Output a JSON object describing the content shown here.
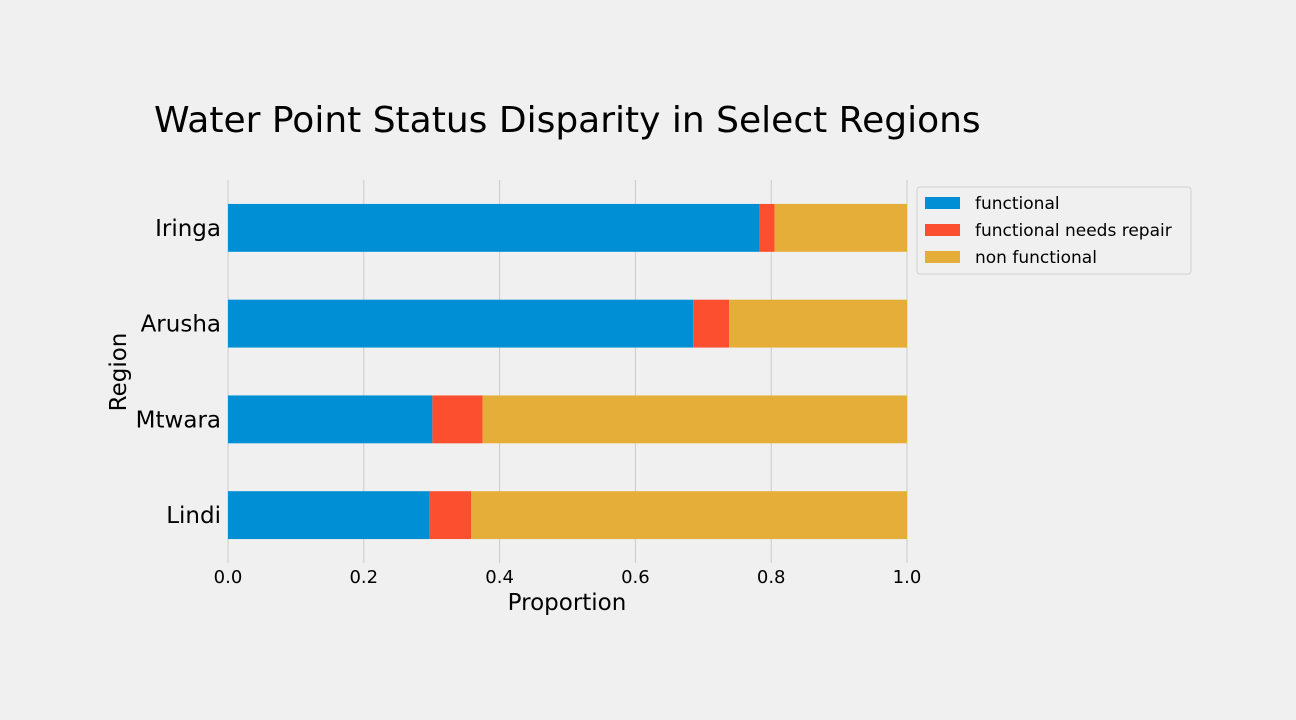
{
  "chart_data": {
    "type": "bar",
    "orientation": "horizontal",
    "stacked": true,
    "title": "Water Point Status Disparity in Select Regions",
    "xlabel": "Proportion",
    "ylabel": "Region",
    "categories": [
      "Iringa",
      "Arusha",
      "Mtwara",
      "Lindi"
    ],
    "series": [
      {
        "name": "functional",
        "color": "#008fd5",
        "values": [
          0.783,
          0.685,
          0.301,
          0.297
        ]
      },
      {
        "name": "functional needs repair",
        "color": "#fc4f30",
        "values": [
          0.022,
          0.053,
          0.074,
          0.061
        ]
      },
      {
        "name": "non functional",
        "color": "#e5ae38",
        "values": [
          0.195,
          0.262,
          0.625,
          0.642
        ]
      }
    ],
    "xlim": [
      0.0,
      1.0
    ],
    "xticks": [
      "0.0",
      "0.2",
      "0.4",
      "0.6",
      "0.8",
      "1.0"
    ],
    "grid": true,
    "legend_position": "top-right outside"
  }
}
